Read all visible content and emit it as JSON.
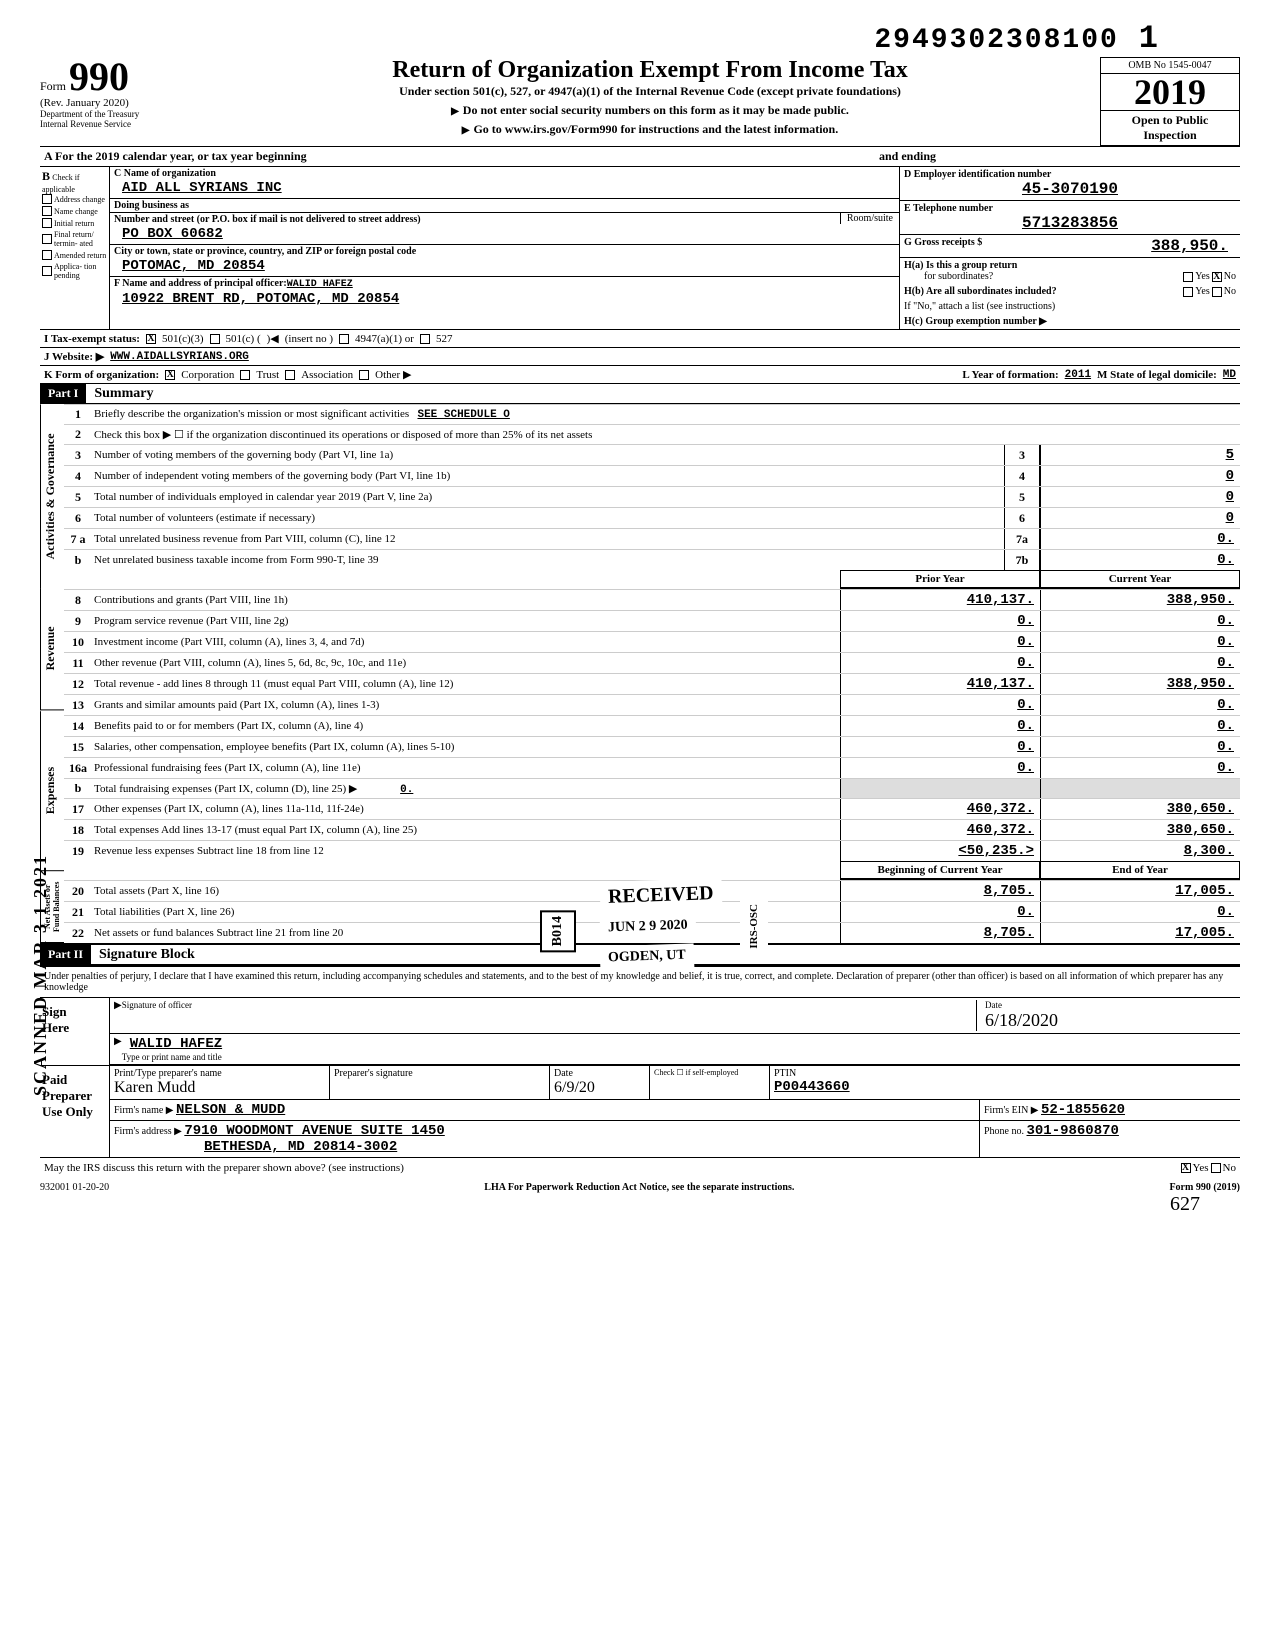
{
  "top_number": "29493023081001",
  "top_number_main": "2949302308100",
  "top_number_trail": "1",
  "omb": "OMB No 1545-0047",
  "form_number": "990",
  "form_word": "Form",
  "rev": "(Rev. January 2020)",
  "dept": "Department of the Treasury\nInternal Revenue Service",
  "title": "Return of Organization Exempt From Income Tax",
  "subtitle": "Under section 501(c), 527, or 4947(a)(1) of the Internal Revenue Code (except private foundations)",
  "arrow1": "Do not enter social security numbers on this form as it may be made public.",
  "arrow2": "Go to www.irs.gov/Form990 for instructions and the latest information.",
  "year": "2019",
  "open": "Open to Public\nInspection",
  "row_a": "A For the 2019 calendar year, or tax year beginning",
  "row_a_end": "and ending",
  "b_head": "B",
  "b_sub": "Check if\napplicable",
  "b_items": [
    "Address change",
    "Name change",
    "Initial return",
    "Final return/ termin- ated",
    "Amended return",
    "Applica- tion pending"
  ],
  "c_label": "C Name of organization",
  "c_name": "AID ALL SYRIANS INC",
  "dba_label": "Doing business as",
  "addr_label": "Number and street (or P.O. box if mail is not delivered to street address)",
  "room_label": "Room/suite",
  "addr": "PO BOX 60682",
  "city_label": "City or town, state or province, country, and ZIP or foreign postal code",
  "city": "POTOMAC, MD   20854",
  "f_label": "F Name and address of principal officer:",
  "f_name": "WALID HAFEZ",
  "f_addr": "10922 BRENT RD, POTOMAC, MD  20854",
  "d_label": "D Employer identification number",
  "d_val": "45-3070190",
  "e_label": "E Telephone number",
  "e_val": "5713283856",
  "g_label": "G Gross receipts $",
  "g_val": "388,950.",
  "ha_label": "H(a) Is this a group return",
  "ha_sub": "for subordinates?",
  "hb_label": "H(b) Are all subordinates included?",
  "hb_note": "If \"No,\" attach a list (see instructions)",
  "hc_label": "H(c) Group exemption number ▶",
  "i_label": "I Tax-exempt status:",
  "i_opts": [
    "501(c)(3)",
    "501(c) (",
    "(insert no )",
    "4947(a)(1) or",
    "527"
  ],
  "j_label": "J Website: ▶",
  "j_val": "WWW.AIDALLSYRIANS.ORG",
  "k_label": "K Form of organization:",
  "k_opts": [
    "Corporation",
    "Trust",
    "Association",
    "Other ▶"
  ],
  "l_label": "L Year of formation:",
  "l_val": "2011",
  "m_label": "M State of legal domicile:",
  "m_val": "MD",
  "part1": "Part I",
  "part1_title": "Summary",
  "gov_tab": "Activities & Governance",
  "rev_tab": "Revenue",
  "exp_tab": "Expenses",
  "net_tab": "Net Assets or\nFund Balances",
  "lines_gov": [
    {
      "n": "1",
      "d": "Briefly describe the organization's mission or most significant activities",
      "v": "SEE SCHEDULE O"
    },
    {
      "n": "2",
      "d": "Check this box ▶ ☐ if the organization discontinued its operations or disposed of more than 25% of its net assets"
    },
    {
      "n": "3",
      "d": "Number of voting members of the governing body (Part VI, line 1a)",
      "box": "3",
      "val": "5"
    },
    {
      "n": "4",
      "d": "Number of independent voting members of the governing body (Part VI, line 1b)",
      "box": "4",
      "val": "0"
    },
    {
      "n": "5",
      "d": "Total number of individuals employed in calendar year 2019 (Part V, line 2a)",
      "box": "5",
      "val": "0"
    },
    {
      "n": "6",
      "d": "Total number of volunteers (estimate if necessary)",
      "box": "6",
      "val": "0"
    },
    {
      "n": "7 a",
      "d": "Total unrelated business revenue from Part VIII, column (C), line 12",
      "box": "7a",
      "val": "0."
    },
    {
      "n": "b",
      "d": "Net unrelated business taxable income from Form 990-T, line 39",
      "box": "7b",
      "val": "0."
    }
  ],
  "col_prior": "Prior Year",
  "col_current": "Current Year",
  "lines_rev": [
    {
      "n": "8",
      "d": "Contributions and grants (Part VIII, line 1h)",
      "p": "410,137.",
      "c": "388,950."
    },
    {
      "n": "9",
      "d": "Program service revenue (Part VIII, line 2g)",
      "p": "0.",
      "c": "0."
    },
    {
      "n": "10",
      "d": "Investment income (Part VIII, column (A), lines 3, 4, and 7d)",
      "p": "0.",
      "c": "0."
    },
    {
      "n": "11",
      "d": "Other revenue (Part VIII, column (A), lines 5, 6d, 8c, 9c, 10c, and 11e)",
      "p": "0.",
      "c": "0."
    },
    {
      "n": "12",
      "d": "Total revenue - add lines 8 through 11 (must equal Part VIII, column (A), line 12)",
      "p": "410,137.",
      "c": "388,950."
    }
  ],
  "lines_exp": [
    {
      "n": "13",
      "d": "Grants and similar amounts paid (Part IX, column (A), lines 1-3)",
      "p": "0.",
      "c": "0."
    },
    {
      "n": "14",
      "d": "Benefits paid to or for members (Part IX, column (A), line 4)",
      "p": "0.",
      "c": "0."
    },
    {
      "n": "15",
      "d": "Salaries, other compensation, employee benefits (Part IX, column (A), lines 5-10)",
      "p": "0.",
      "c": "0."
    },
    {
      "n": "16a",
      "d": "Professional fundraising fees (Part IX, column (A), line 11e)",
      "p": "0.",
      "c": "0."
    },
    {
      "n": "b",
      "d": "Total fundraising expenses (Part IX, column (D), line 25)     ▶",
      "inline": "0.",
      "p": "",
      "c": "",
      "shade": true
    },
    {
      "n": "17",
      "d": "Other expenses (Part IX, column (A), lines 11a-11d, 11f-24e)",
      "p": "460,372.",
      "c": "380,650."
    },
    {
      "n": "18",
      "d": "Total expenses Add lines 13-17 (must equal Part IX, column (A), line 25)",
      "p": "460,372.",
      "c": "380,650."
    },
    {
      "n": "19",
      "d": "Revenue less expenses Subtract line 18 from line 12",
      "p": "<50,235.>",
      "c": "8,300."
    }
  ],
  "col_begin": "Beginning of Current Year",
  "col_end": "End of Year",
  "lines_net": [
    {
      "n": "20",
      "d": "Total assets (Part X, line 16)",
      "p": "8,705.",
      "c": "17,005."
    },
    {
      "n": "21",
      "d": "Total liabilities (Part X, line 26)",
      "p": "0.",
      "c": "0."
    },
    {
      "n": "22",
      "d": "Net assets or fund balances Subtract line 21 from line 20",
      "p": "8,705.",
      "c": "17,005."
    }
  ],
  "part2": "Part II",
  "part2_title": "Signature Block",
  "sig_text": "Under penalties of perjury, I declare that I have examined this return, including accompanying schedules and statements, and to the best of my knowledge and belief, it is true, correct, and complete. Declaration of preparer (other than officer) is based on all information of which preparer has any knowledge",
  "sign_here": "Sign\nHere",
  "sig_officer_label": "Signature of officer",
  "sig_date_label": "Date",
  "sig_date": "6/18/2020",
  "sig_name": "WALID HAFEZ",
  "sig_name_label": "Type or print name and title",
  "paid": "Paid\nPreparer\nUse Only",
  "prep_name_label": "Print/Type preparer's name",
  "prep_name": "Karen Mudd",
  "prep_sig_label": "Preparer's signature",
  "prep_date": "6/9/20",
  "prep_check_label": "Check ☐ if self-employed",
  "ptin_label": "PTIN",
  "ptin": "P00443660",
  "firm_name_label": "Firm's name ▶",
  "firm_name": "NELSON & MUDD",
  "firm_ein_label": "Firm's EIN ▶",
  "firm_ein": "52-1855620",
  "firm_addr_label": "Firm's address ▶",
  "firm_addr1": "7910 WOODMONT AVENUE SUITE 1450",
  "firm_addr2": "BETHESDA, MD 20814-3002",
  "phone_label": "Phone no.",
  "phone": "301-9860870",
  "discuss": "May the IRS discuss this return with the preparer shown above? (see instructions)",
  "yes": "Yes",
  "no": "No",
  "lha": "LHA For Paperwork Reduction Act Notice, see the separate instructions.",
  "form_foot": "Form 990 (2019)",
  "foot_code": "932001 01-20-20",
  "stamp_recv": "RECEIVED",
  "stamp_b014": "B014",
  "stamp_date": "JUN 2 9 2020",
  "stamp_ogden": "OGDEN, UT",
  "stamp_irs": "IRS-OSC",
  "scanned": "SCANNED MAR 3 1 2021",
  "hand": "627"
}
